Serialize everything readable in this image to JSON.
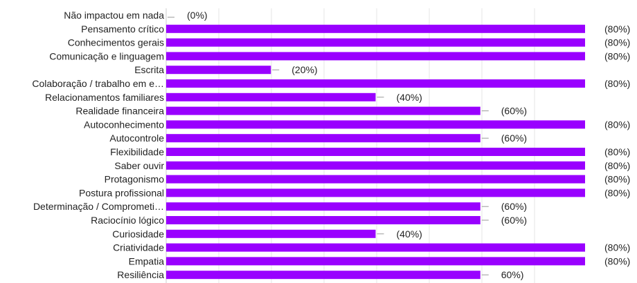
{
  "chart_data": {
    "type": "bar",
    "orientation": "horizontal",
    "categories": [
      "Não impactou em nada",
      "Pensamento crítico",
      "Conhecimentos gerais",
      "Comunicação e linguagem",
      "Escrita",
      "Colaboração / trabalho em e…",
      "Relacionamentos familiares",
      "Realidade financeira",
      "Autoconhecimento",
      "Autocontrole",
      "Flexibilidade",
      "Saber ouvir",
      "Protagonismo",
      "Postura profissional",
      "Determinação / Comprometi…",
      "Raciocínio lógico",
      "Curiosidade",
      "Criatividade",
      "Empatia",
      "Resiliência"
    ],
    "values": [
      0,
      80,
      80,
      80,
      20,
      80,
      40,
      60,
      80,
      60,
      80,
      80,
      80,
      80,
      60,
      60,
      40,
      80,
      80,
      60
    ],
    "value_labels": [
      "(0%)",
      "(80%)",
      "(80%)",
      "(80%)",
      "(20%)",
      "(80%)",
      "(40%)",
      "(60%)",
      "(80%)",
      "(60%)",
      "(80%)",
      "(80%)",
      "(80%)",
      "(80%)",
      "(60%)",
      "(60%)",
      "(40%)",
      "(80%)",
      "(80%)",
      "60%)"
    ],
    "xlim": [
      0,
      80
    ],
    "grid": true,
    "bar_color": "#9900ff",
    "grid_color": "#e6e6e6",
    "title": "",
    "xlabel": "",
    "ylabel": ""
  }
}
